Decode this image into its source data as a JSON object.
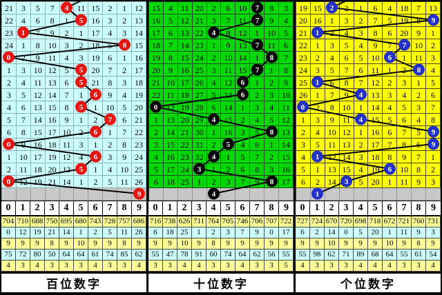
{
  "chart_data": {
    "type": "table",
    "title": "3D lottery digit trend chart (missing-value walk chart)",
    "digit_columns": [
      "0",
      "1",
      "2",
      "3",
      "4",
      "5",
      "6",
      "7",
      "8",
      "9"
    ],
    "panels": [
      {
        "id": "hundreds",
        "label": "百位数字",
        "bg": "#ccffff",
        "grid_line": "#8fb2b2",
        "ball_color": "#e81410",
        "trend_line_color": "#000000",
        "line_enters_from_top": true,
        "digits_drawn": [
          4,
          5,
          1,
          8,
          0,
          5,
          5,
          6,
          5,
          7,
          6,
          0,
          6,
          5,
          0,
          9
        ],
        "rows": [
          {
            "cells": [
              "21",
              "3",
              "5",
              "7",
              "4",
              "11",
              "15",
              "2",
              "1",
              "12"
            ],
            "ball": 4
          },
          {
            "cells": [
              "22",
              "4",
              "6",
              "8",
              "1",
              "5",
              "16",
              "3",
              "2",
              "13"
            ],
            "ball": 5
          },
          {
            "cells": [
              "23",
              "1",
              "7",
              "9",
              "2",
              "1",
              "17",
              "4",
              "3",
              "14"
            ],
            "ball": 1
          },
          {
            "cells": [
              "24",
              "1",
              "8",
              "10",
              "3",
              "2",
              "18",
              "5",
              "8",
              "15"
            ],
            "ball": 8
          },
          {
            "cells": [
              "0",
              "2",
              "9",
              "11",
              "4",
              "3",
              "19",
              "6",
              "1",
              "16"
            ],
            "ball": 0
          },
          {
            "cells": [
              "1",
              "3",
              "10",
              "12",
              "5",
              "5",
              "20",
              "7",
              "2",
              "17"
            ],
            "ball": 5
          },
          {
            "cells": [
              "2",
              "4",
              "11",
              "13",
              "6",
              "5",
              "21",
              "8",
              "3",
              "18"
            ],
            "ball": 5
          },
          {
            "cells": [
              "3",
              "5",
              "12",
              "14",
              "7",
              "1",
              "6",
              "9",
              "4",
              "19"
            ],
            "ball": 6
          },
          {
            "cells": [
              "4",
              "6",
              "13",
              "15",
              "8",
              "5",
              "1",
              "10",
              "5",
              "20"
            ],
            "ball": 5
          },
          {
            "cells": [
              "5",
              "7",
              "14",
              "16",
              "9",
              "1",
              "2",
              "7",
              "6",
              "21"
            ],
            "ball": 7
          },
          {
            "cells": [
              "6",
              "8",
              "15",
              "17",
              "10",
              "2",
              "6",
              "1",
              "7",
              "22"
            ],
            "ball": 6
          },
          {
            "cells": [
              "0",
              "9",
              "16",
              "18",
              "11",
              "3",
              "1",
              "2",
              "8",
              "23"
            ],
            "ball": 0
          },
          {
            "cells": [
              "1",
              "10",
              "17",
              "19",
              "12",
              "4",
              "6",
              "3",
              "9",
              "24"
            ],
            "ball": 6
          },
          {
            "cells": [
              "2",
              "11",
              "18",
              "20",
              "13",
              "5",
              "1",
              "4",
              "10",
              "25"
            ],
            "ball": 5
          },
          {
            "cells": [
              "0",
              "12",
              "19",
              "21",
              "14",
              "1",
              "2",
              "5",
              "11",
              "26"
            ],
            "ball": 0
          }
        ],
        "latest_row": {
          "col": 9,
          "value": "9"
        },
        "stats_header": [
          "0",
          "1",
          "2",
          "3",
          "4",
          "5",
          "6",
          "7",
          "8",
          "9"
        ],
        "stats_rows": [
          [
            "704",
            "710",
            "688",
            "750",
            "695",
            "680",
            "743",
            "728",
            "757",
            "686"
          ],
          [
            "0",
            "12",
            "19",
            "21",
            "14",
            "1",
            "2",
            "5",
            "11",
            "26"
          ],
          [
            "9",
            "9",
            "9",
            "8",
            "9",
            "10",
            "9",
            "9",
            "8",
            "9"
          ],
          [
            "75",
            "72",
            "80",
            "50",
            "64",
            "64",
            "61",
            "74",
            "85",
            "62"
          ],
          [
            "4",
            "3",
            "4",
            "3",
            "3",
            "3",
            "4",
            "3",
            "3",
            "4"
          ]
        ]
      },
      {
        "id": "tens",
        "label": "十位数字",
        "bg": "#00d800",
        "grid_line": "#1e4a1e",
        "ball_color": "#000000",
        "trend_line_color": "#000000",
        "line_enters_from_top": false,
        "digits_drawn": [
          7,
          7,
          4,
          7,
          8,
          7,
          6,
          6,
          0,
          4,
          8,
          5,
          4,
          3,
          8,
          4
        ],
        "rows": [
          {
            "cells": [
              "15",
              "4",
              "11",
              "20",
              "2",
              "6",
              "10",
              "7",
              "8",
              "3"
            ],
            "ball": 7
          },
          {
            "cells": [
              "16",
              "5",
              "12",
              "21",
              "3",
              "7",
              "11",
              "7",
              "9",
              "4"
            ],
            "ball": 7
          },
          {
            "cells": [
              "17",
              "6",
              "13",
              "22",
              "4",
              "8",
              "12",
              "1",
              "10",
              "5"
            ],
            "ball": 4
          },
          {
            "cells": [
              "18",
              "7",
              "14",
              "23",
              "1",
              "9",
              "13",
              "7",
              "11",
              "6"
            ],
            "ball": 7
          },
          {
            "cells": [
              "19",
              "8",
              "15",
              "24",
              "2",
              "10",
              "14",
              "1",
              "8",
              "7"
            ],
            "ball": 8
          },
          {
            "cells": [
              "20",
              "9",
              "16",
              "25",
              "3",
              "11",
              "15",
              "7",
              "1",
              "8"
            ],
            "ball": 7
          },
          {
            "cells": [
              "21",
              "10",
              "17",
              "26",
              "4",
              "12",
              "6",
              "1",
              "2",
              "9"
            ],
            "ball": 6
          },
          {
            "cells": [
              "22",
              "11",
              "18",
              "27",
              "5",
              "13",
              "6",
              "2",
              "3",
              "10"
            ],
            "ball": 6
          },
          {
            "cells": [
              "0",
              "12",
              "19",
              "28",
              "6",
              "14",
              "1",
              "3",
              "4",
              "11"
            ],
            "ball": 0
          },
          {
            "cells": [
              "1",
              "13",
              "20",
              "29",
              "4",
              "15",
              "2",
              "4",
              "5",
              "12"
            ],
            "ball": 4
          },
          {
            "cells": [
              "2",
              "14",
              "21",
              "30",
              "1",
              "16",
              "3",
              "5",
              "8",
              "13"
            ],
            "ball": 8
          },
          {
            "cells": [
              "3",
              "15",
              "22",
              "31",
              "2",
              "5",
              "4",
              "6",
              "1",
              "14"
            ],
            "ball": 5
          },
          {
            "cells": [
              "4",
              "16",
              "23",
              "32",
              "4",
              "1",
              "5",
              "7",
              "2",
              "15"
            ],
            "ball": 4
          },
          {
            "cells": [
              "5",
              "17",
              "24",
              "3",
              "1",
              "2",
              "6",
              "8",
              "3",
              "16"
            ],
            "ball": 3
          },
          {
            "cells": [
              "6",
              "18",
              "25",
              "1",
              "2",
              "3",
              "7",
              "9",
              "8",
              "17"
            ],
            "ball": 8
          }
        ],
        "latest_row": {
          "col": 4,
          "value": "4"
        },
        "stats_header": [
          "0",
          "1",
          "2",
          "3",
          "4",
          "5",
          "6",
          "7",
          "8",
          "9"
        ],
        "stats_rows": [
          [
            "716",
            "738",
            "626",
            "711",
            "764",
            "705",
            "746",
            "706",
            "707",
            "722"
          ],
          [
            "6",
            "18",
            "25",
            "1",
            "2",
            "3",
            "7",
            "9",
            "0",
            "17"
          ],
          [
            "9",
            "9",
            "10",
            "9",
            "8",
            "9",
            "9",
            "9",
            "9",
            "9"
          ],
          [
            "55",
            "47",
            "78",
            "91",
            "60",
            "74",
            "64",
            "62",
            "56",
            "55"
          ],
          [
            "3",
            "3",
            "4",
            "4",
            "3",
            "3",
            "4",
            "3",
            "3",
            "5"
          ]
        ]
      },
      {
        "id": "units",
        "label": "个位数字",
        "bg": "#ffff00",
        "grid_line": "#4a4a2a",
        "ball_color": "#2431c8",
        "trend_line_color": "#000000",
        "line_enters_from_top": true,
        "digits_drawn": [
          2,
          9,
          1,
          7,
          6,
          8,
          1,
          4,
          0,
          4,
          9,
          9,
          1,
          6,
          3,
          1
        ],
        "rows": [
          {
            "cells": [
              "19",
              "15",
              "2",
              "2",
              "1",
              "6",
              "4",
              "18",
              "7",
              "13"
            ],
            "ball": 2
          },
          {
            "cells": [
              "20",
              "16",
              "1",
              "3",
              "2",
              "7",
              "5",
              "19",
              "8",
              "9"
            ],
            "ball": 9
          },
          {
            "cells": [
              "21",
              "1",
              "2",
              "4",
              "3",
              "8",
              "6",
              "20",
              "9",
              "1"
            ],
            "ball": 1
          },
          {
            "cells": [
              "22",
              "1",
              "3",
              "5",
              "4",
              "9",
              "7",
              "7",
              "10",
              "2"
            ],
            "ball": 7
          },
          {
            "cells": [
              "23",
              "2",
              "4",
              "6",
              "5",
              "10",
              "6",
              "1",
              "11",
              "3"
            ],
            "ball": 6
          },
          {
            "cells": [
              "24",
              "3",
              "5",
              "7",
              "6",
              "11",
              "1",
              "2",
              "8",
              "4"
            ],
            "ball": 8
          },
          {
            "cells": [
              "25",
              "1",
              "6",
              "8",
              "7",
              "12",
              "2",
              "3",
              "1",
              "5"
            ],
            "ball": 1
          },
          {
            "cells": [
              "26",
              "1",
              "7",
              "9",
              "4",
              "13",
              "3",
              "4",
              "2",
              "6"
            ],
            "ball": 4
          },
          {
            "cells": [
              "0",
              "2",
              "8",
              "10",
              "1",
              "14",
              "4",
              "5",
              "3",
              "7"
            ],
            "ball": 0
          },
          {
            "cells": [
              "1",
              "3",
              "9",
              "11",
              "4",
              "15",
              "5",
              "6",
              "4",
              "8"
            ],
            "ball": 4
          },
          {
            "cells": [
              "2",
              "4",
              "10",
              "12",
              "1",
              "16",
              "6",
              "7",
              "5",
              "9"
            ],
            "ball": 9
          },
          {
            "cells": [
              "3",
              "5",
              "11",
              "13",
              "2",
              "17",
              "7",
              "8",
              "6",
              "9"
            ],
            "ball": 9
          },
          {
            "cells": [
              "4",
              "1",
              "12",
              "14",
              "3",
              "18",
              "8",
              "9",
              "7",
              "1"
            ],
            "ball": 1
          },
          {
            "cells": [
              "5",
              "1",
              "13",
              "15",
              "4",
              "19",
              "6",
              "10",
              "8",
              "2"
            ],
            "ball": 6
          },
          {
            "cells": [
              "6",
              "2",
              "14",
              "3",
              "5",
              "20",
              "1",
              "11",
              "9",
              "3"
            ],
            "ball": 3
          }
        ],
        "latest_row": {
          "col": 1,
          "value": "1"
        },
        "stats_header": [
          "0",
          "1",
          "2",
          "3",
          "4",
          "5",
          "6",
          "7",
          "8",
          "9"
        ],
        "stats_rows": [
          [
            "727",
            "724",
            "670",
            "720",
            "698",
            "718",
            "672",
            "721",
            "760",
            "731"
          ],
          [
            "6",
            "2",
            "14",
            "0",
            "5",
            "20",
            "1",
            "11",
            "9",
            "3"
          ],
          [
            "9",
            "9",
            "10",
            "9",
            "9",
            "9",
            "10",
            "9",
            "8",
            "9"
          ],
          [
            "55",
            "98",
            "62",
            "71",
            "89",
            "68",
            "64",
            "55",
            "61",
            "54"
          ],
          [
            "4",
            "3",
            "3",
            "3",
            "4",
            "4",
            "4",
            "3",
            "3",
            "4"
          ]
        ]
      }
    ],
    "layout": {
      "grid_rows": 16,
      "latest_row_bg": "#c8c8c8",
      "stats_row_bgs": [
        "#ffff99",
        "#ccffff",
        "#ffff99",
        "#ccffff",
        "#ffff99"
      ],
      "ball_text_color": "#ffffff"
    }
  }
}
